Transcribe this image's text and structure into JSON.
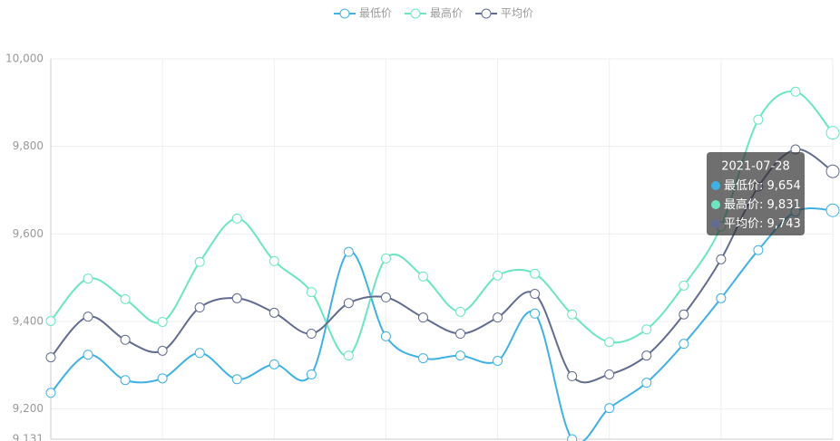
{
  "chart_data": {
    "type": "line",
    "categories": [
      null,
      null,
      null,
      null,
      null,
      null,
      null,
      null,
      null,
      null,
      null,
      null,
      null,
      null,
      null,
      null,
      null,
      null,
      null,
      null,
      null,
      "2021-07-28"
    ],
    "series": [
      {
        "name": "最低价",
        "color": "#3fb1e3",
        "values": [
          9237,
          9324,
          9266,
          9270,
          9328,
          9268,
          9302,
          9279,
          9559,
          9366,
          9316,
          9322,
          9310,
          9418,
          9131,
          9202,
          9260,
          9349,
          9453,
          9563,
          9651,
          9654
        ]
      },
      {
        "name": "最高价",
        "color": "#6be6c1",
        "values": [
          9401,
          9498,
          9451,
          9399,
          9536,
          9635,
          9538,
          9467,
          9322,
          9544,
          9503,
          9422,
          9505,
          9509,
          9416,
          9353,
          9382,
          9482,
          9617,
          9861,
          9925,
          9831
        ]
      },
      {
        "name": "平均价",
        "color": "#626c91",
        "values": [
          9318,
          9411,
          9358,
          9333,
          9432,
          9453,
          9420,
          9372,
          9442,
          9455,
          9409,
          9372,
          9409,
          9463,
          9275,
          9279,
          9322,
          9416,
          9542,
          9708,
          9793,
          9743
        ]
      }
    ],
    "ylim": [
      9131,
      10000
    ],
    "yticks": [
      {
        "value": 9131,
        "label": "9,131"
      },
      {
        "value": 9200,
        "label": "9,200"
      },
      {
        "value": 9400,
        "label": "9,400"
      },
      {
        "value": 9600,
        "label": "9,600"
      },
      {
        "value": 9800,
        "label": "9,800"
      },
      {
        "value": 10000,
        "label": "10,000"
      }
    ],
    "grid": true,
    "legend": "top",
    "smooth": true,
    "tooltip": {
      "labels": [
        "9,654",
        "9,831",
        "9,743"
      ]
    }
  }
}
